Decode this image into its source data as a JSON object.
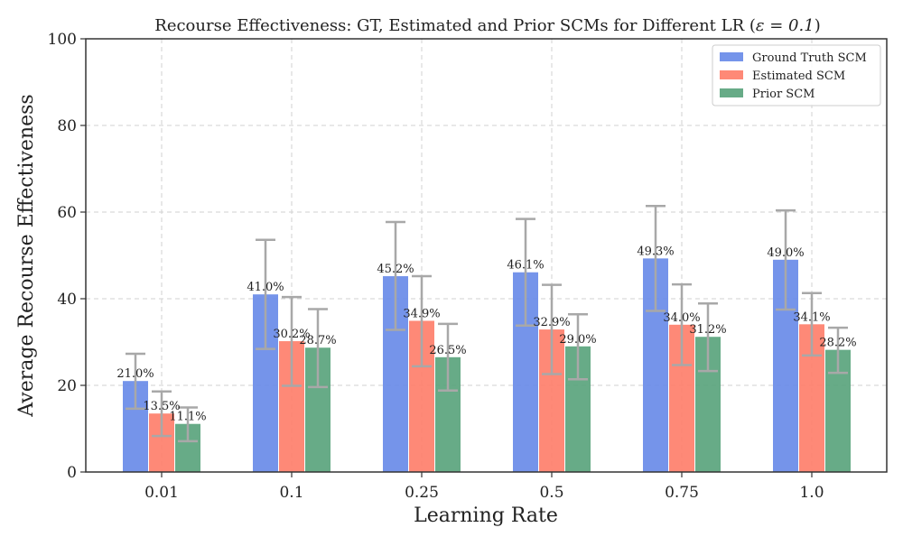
{
  "chart_data": {
    "type": "bar",
    "title": "Recourse Effectiveness: GT, Estimated and Prior SCMs for Different LR (",
    "title_epsilon": "ε = 0.1",
    "title_close": ")",
    "xlabel": "Learning Rate",
    "ylabel": "Average Recourse Effectiveness",
    "categories": [
      "0.01",
      "0.1",
      "0.25",
      "0.5",
      "0.75",
      "1.0"
    ],
    "ylim": [
      0,
      100
    ],
    "yticks": [
      0,
      20,
      40,
      60,
      80,
      100
    ],
    "grid": true,
    "legend_position": "top-right",
    "series": [
      {
        "name": "Ground Truth SCM",
        "color": "#6688e8",
        "values": [
          21.0,
          41.0,
          45.2,
          46.1,
          49.3,
          49.0
        ],
        "err_low": [
          14.6,
          28.4,
          32.8,
          33.8,
          37.2,
          37.5
        ],
        "err_high": [
          27.3,
          53.6,
          57.7,
          58.4,
          61.4,
          60.4
        ],
        "labels": [
          "21.0%",
          "41.0%",
          "45.2%",
          "46.1%",
          "49.3%",
          "49.0%"
        ]
      },
      {
        "name": "Estimated SCM",
        "color": "#fe7c68",
        "values": [
          13.5,
          30.2,
          34.9,
          32.9,
          34.0,
          34.1
        ],
        "err_low": [
          8.3,
          19.9,
          24.4,
          22.6,
          24.7,
          26.9
        ],
        "err_high": [
          18.6,
          40.4,
          45.2,
          43.2,
          43.3,
          41.3
        ],
        "labels": [
          "13.5%",
          "30.2%",
          "34.9%",
          "32.9%",
          "34.0%",
          "34.1%"
        ]
      },
      {
        "name": "Prior SCM",
        "color": "#56a27a",
        "values": [
          11.1,
          28.7,
          26.5,
          29.0,
          31.2,
          28.2
        ],
        "err_low": [
          7.1,
          19.6,
          18.8,
          21.4,
          23.3,
          22.9
        ],
        "err_high": [
          14.9,
          37.6,
          34.2,
          36.4,
          38.9,
          33.3
        ],
        "labels": [
          "11.1%",
          "28.7%",
          "26.5%",
          "29.0%",
          "31.2%",
          "28.2%"
        ]
      }
    ],
    "error_bar_color": "#a8a8a8",
    "grid_color": "#d0d0d0"
  }
}
